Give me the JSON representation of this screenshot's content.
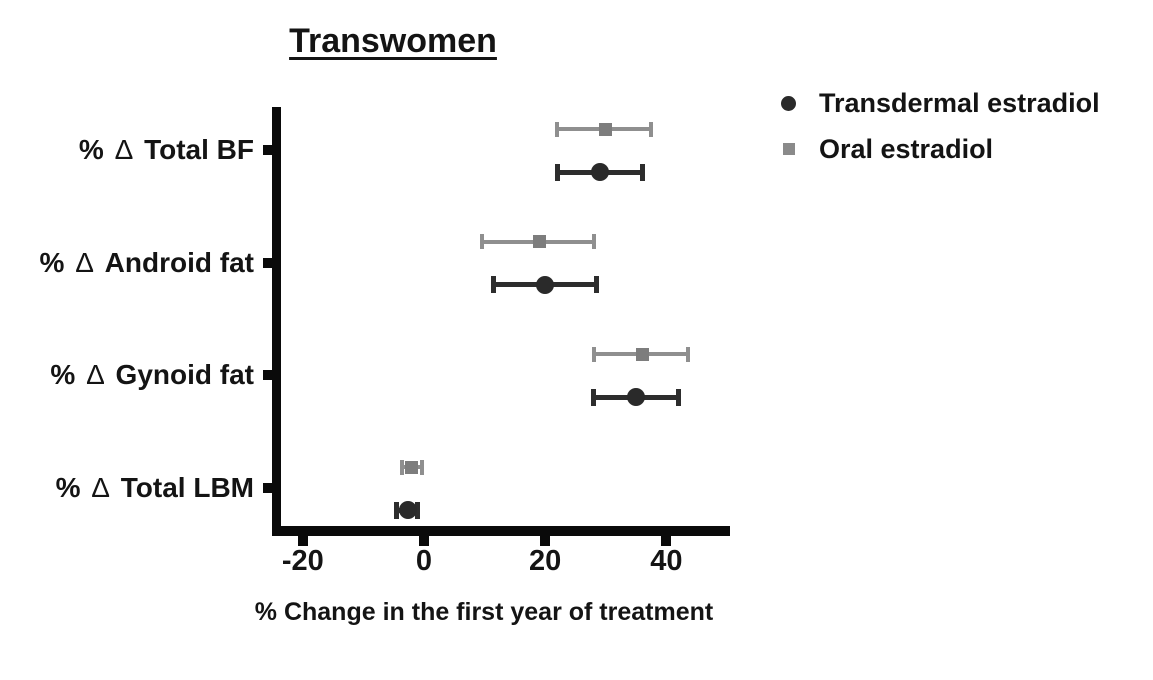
{
  "title": "Transwomen",
  "chart_data": {
    "type": "scatter",
    "subtype": "horizontal-error-bar-forest-plot",
    "title": "Transwomen",
    "xlabel": "% Change in the first year of treatment",
    "ylabel": "",
    "xlim": [
      -25,
      50
    ],
    "xticks": [
      -20,
      0,
      20,
      40
    ],
    "grid": false,
    "legend_position": "top-right",
    "categories": [
      "% Δ Total BF",
      "% Δ Android fat",
      "% Δ Gynoid fat",
      "% Δ Total LBM"
    ],
    "series": [
      {
        "name": "Transdermal estradiol",
        "marker": "circle",
        "color": "#2d2d2d",
        "marker_color": "#2a2a2a",
        "values": [
          29,
          20,
          35,
          -2.7
        ],
        "ci_low": [
          22,
          11.5,
          28,
          -4.5
        ],
        "ci_high": [
          36,
          28.5,
          42,
          -1
        ]
      },
      {
        "name": "Oral estradiol",
        "marker": "square",
        "color": "#8f8f8f",
        "marker_color": "#7d7d7d",
        "values": [
          30,
          19,
          36,
          -2
        ],
        "ci_low": [
          22,
          9.5,
          28,
          -3.6
        ],
        "ci_high": [
          37.5,
          28,
          43.5,
          -0.3
        ]
      }
    ],
    "legend": [
      {
        "label": "Transdermal estradiol",
        "marker": "circle",
        "color": "#2a2a2a"
      },
      {
        "label": "Oral estradiol",
        "marker": "square",
        "color": "#8a8a8a"
      }
    ],
    "axis_color": "#0a0a0a"
  }
}
